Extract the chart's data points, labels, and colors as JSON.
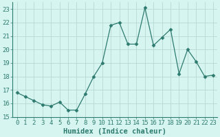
{
  "x": [
    0,
    1,
    2,
    3,
    4,
    5,
    6,
    7,
    8,
    9,
    10,
    11,
    12,
    13,
    14,
    15,
    16,
    17,
    18,
    19,
    20,
    21,
    22,
    23
  ],
  "y": [
    16.8,
    16.5,
    16.2,
    15.9,
    15.8,
    16.1,
    15.5,
    15.5,
    16.7,
    18.0,
    19.0,
    21.8,
    22.0,
    20.4,
    20.4,
    23.1,
    20.3,
    20.9,
    21.5,
    18.2,
    20.0,
    19.1,
    18.0,
    18.1
  ],
  "line_color": "#2d7a6e",
  "marker": "D",
  "marker_size": 2.5,
  "bg_color": "#d6f5f0",
  "grid_color": "#b8d8d3",
  "xlabel": "Humidex (Indice chaleur)",
  "xlabel_fontsize": 7.5,
  "tick_fontsize": 6.5,
  "ylim": [
    15,
    23.5
  ],
  "yticks": [
    15,
    16,
    17,
    18,
    19,
    20,
    21,
    22,
    23
  ],
  "xlim": [
    -0.5,
    23.5
  ],
  "xticks": [
    0,
    1,
    2,
    3,
    4,
    5,
    6,
    7,
    8,
    9,
    10,
    11,
    12,
    13,
    14,
    15,
    16,
    17,
    18,
    19,
    20,
    21,
    22,
    23
  ]
}
